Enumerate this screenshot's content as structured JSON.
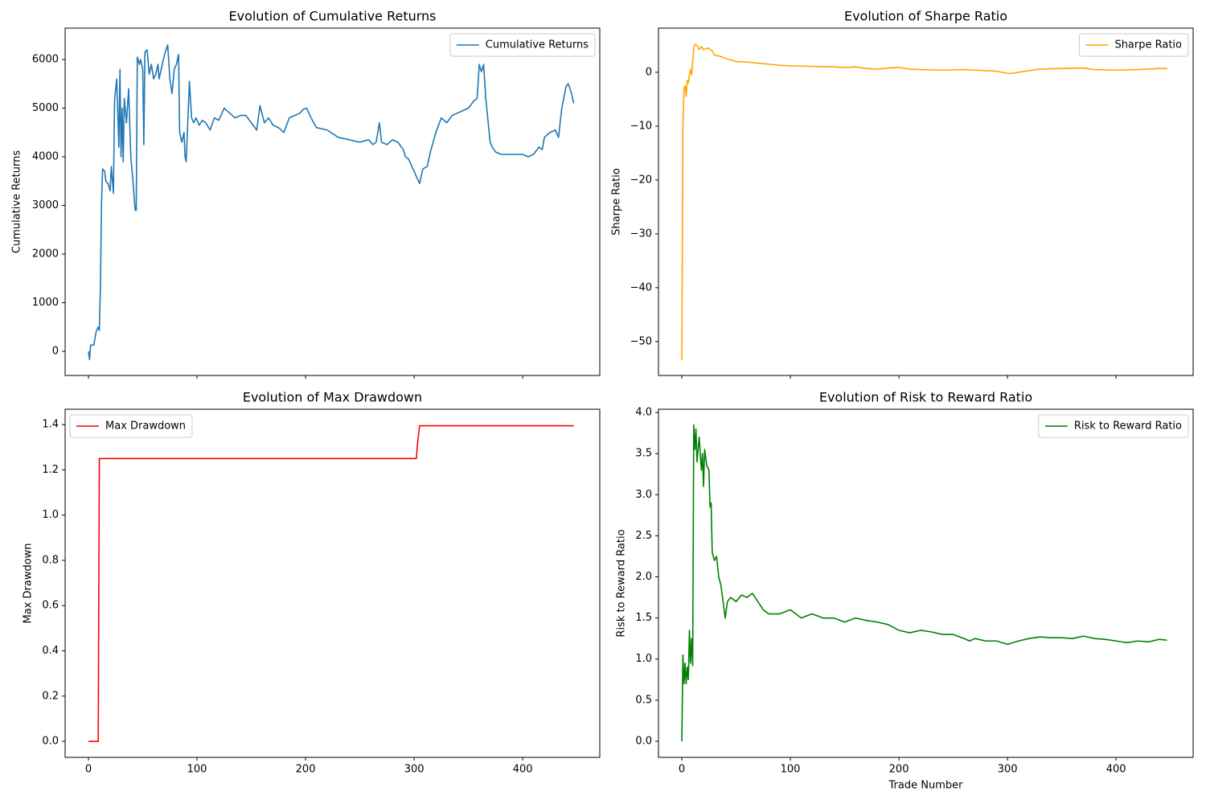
{
  "chart_data": [
    {
      "type": "line",
      "title": "Evolution of Cumulative Returns",
      "ylabel": "Cumulative Returns",
      "legend": "upper right",
      "xtick_labels": false,
      "x": [
        0,
        1,
        2,
        5,
        7,
        9,
        10,
        11,
        12,
        13,
        15,
        16,
        18,
        20,
        21,
        23,
        24,
        26,
        28,
        29,
        30,
        31,
        32,
        33,
        35,
        37,
        39,
        41,
        43,
        44,
        45,
        47,
        48,
        50,
        51,
        52,
        54,
        56,
        58,
        60,
        62,
        64,
        65,
        68,
        70,
        73,
        75,
        77,
        79,
        81,
        83,
        84,
        86,
        88,
        89,
        90,
        93,
        95,
        97,
        99,
        102,
        105,
        108,
        112,
        116,
        120,
        125,
        130,
        135,
        140,
        145,
        150,
        155,
        158,
        162,
        166,
        170,
        175,
        180,
        185,
        190,
        195,
        198,
        201,
        205,
        210,
        220,
        230,
        240,
        250,
        258,
        262,
        265,
        268,
        270,
        275,
        280,
        285,
        290,
        292,
        295,
        300,
        305,
        308,
        312,
        315,
        320,
        325,
        330,
        335,
        340,
        345,
        350,
        355,
        358,
        360,
        362,
        364,
        366,
        370,
        372,
        375,
        380,
        390,
        400,
        405,
        410,
        415,
        418,
        420,
        425,
        430,
        433,
        436,
        440,
        442,
        445,
        447
      ],
      "series": [
        {
          "name": "Cumulative Returns",
          "color": "#1f77b4",
          "values": [
            0,
            -170,
            130,
            130,
            400,
            500,
            430,
            1300,
            3000,
            3750,
            3700,
            3500,
            3450,
            3300,
            3800,
            3250,
            5150,
            5600,
            4200,
            5800,
            4000,
            5000,
            3900,
            5200,
            4700,
            5400,
            4000,
            3500,
            2900,
            2900,
            6050,
            5900,
            6000,
            5800,
            4250,
            6150,
            6200,
            5700,
            5900,
            5600,
            5700,
            5900,
            5600,
            5900,
            6100,
            6300,
            5600,
            5300,
            5800,
            5900,
            6100,
            4500,
            4300,
            4500,
            4000,
            3900,
            5550,
            4800,
            4700,
            4800,
            4650,
            4750,
            4700,
            4550,
            4800,
            4750,
            5000,
            4900,
            4800,
            4850,
            4850,
            4700,
            4550,
            5050,
            4700,
            4800,
            4650,
            4600,
            4500,
            4800,
            4850,
            4900,
            4980,
            5000,
            4800,
            4600,
            4550,
            4400,
            4350,
            4300,
            4350,
            4250,
            4300,
            4700,
            4300,
            4250,
            4350,
            4300,
            4150,
            4000,
            3950,
            3700,
            3450,
            3750,
            3800,
            4100,
            4500,
            4800,
            4700,
            4850,
            4900,
            4950,
            5000,
            5150,
            5200,
            5900,
            5750,
            5900,
            5200,
            4300,
            4200,
            4100,
            4050,
            4050,
            4050,
            4000,
            4050,
            4200,
            4150,
            4400,
            4500,
            4550,
            4400,
            5000,
            5450,
            5500,
            5300,
            5100
          ]
        }
      ],
      "xlim": [
        -21.5,
        471
      ],
      "ylim": [
        -496,
        6645
      ],
      "xticks": [
        0,
        100,
        200,
        300,
        400
      ],
      "yticks": [
        0,
        1000,
        2000,
        3000,
        4000,
        5000,
        6000
      ]
    },
    {
      "type": "line",
      "title": "Evolution of Sharpe Ratio",
      "ylabel": "Sharpe Ratio",
      "legend": "upper right",
      "xtick_labels": false,
      "x": [
        0,
        1,
        2,
        3,
        4,
        5,
        6,
        7,
        8,
        9,
        10,
        11,
        12,
        14,
        16,
        18,
        20,
        24,
        28,
        30,
        35,
        40,
        45,
        50,
        60,
        70,
        80,
        90,
        100,
        120,
        140,
        150,
        160,
        170,
        180,
        190,
        200,
        210,
        220,
        240,
        260,
        270,
        290,
        300,
        305,
        310,
        320,
        330,
        350,
        370,
        380,
        400,
        420,
        440,
        447
      ],
      "series": [
        {
          "name": "Sharpe Ratio",
          "color": "#ffa500",
          "values": [
            -53.5,
            -10,
            -3,
            -2.5,
            -4.5,
            -1.5,
            -2,
            -0.5,
            0.5,
            -0.5,
            2,
            4.5,
            5.2,
            5,
            4.2,
            4.8,
            4.2,
            4.5,
            4,
            3.2,
            3,
            2.6,
            2.3,
            2,
            1.9,
            1.7,
            1.5,
            1.3,
            1.2,
            1.1,
            1.0,
            0.9,
            1.0,
            0.7,
            0.6,
            0.8,
            0.9,
            0.6,
            0.5,
            0.4,
            0.5,
            0.4,
            0.2,
            -0.2,
            -0.2,
            0,
            0.3,
            0.6,
            0.7,
            0.8,
            0.5,
            0.4,
            0.5,
            0.7,
            0.7
          ]
        }
      ],
      "xlim": [
        -21.5,
        471
      ],
      "ylim": [
        -56.3,
        8.2
      ],
      "xticks": [
        0,
        100,
        200,
        300,
        400
      ],
      "yticks": [
        {
          "value": -50,
          "label": "−50"
        },
        {
          "value": -40,
          "label": "−40"
        },
        {
          "value": -30,
          "label": "−30"
        },
        {
          "value": -20,
          "label": "−20"
        },
        {
          "value": -10,
          "label": "−10"
        },
        0
      ]
    },
    {
      "type": "line",
      "title": "Evolution of Max Drawdown",
      "ylabel": "Max Drawdown",
      "legend": "upper left",
      "xtick_labels": true,
      "x": [
        0,
        9,
        10,
        302,
        303,
        305,
        447
      ],
      "series": [
        {
          "name": "Max Drawdown",
          "color": "#ff0000",
          "values": [
            0,
            0,
            1.25,
            1.25,
            1.31,
            1.395,
            1.395
          ]
        }
      ],
      "xlim": [
        -21.5,
        471
      ],
      "ylim": [
        -0.071,
        1.468
      ],
      "xticks": [
        0,
        100,
        200,
        300,
        400
      ],
      "yticks": [
        {
          "value": 0,
          "label": "0.0"
        },
        0.2,
        0.4,
        0.6,
        0.8,
        {
          "value": 1,
          "label": "1.0"
        },
        1.2,
        1.4
      ]
    },
    {
      "type": "line",
      "title": "Evolution of Risk to Reward Ratio",
      "ylabel": "Risk to Reward Ratio",
      "xlabel": "Trade Number",
      "legend": "upper right",
      "xtick_labels": true,
      "x": [
        0,
        1,
        2,
        3,
        4,
        5,
        6,
        7,
        8,
        9,
        10,
        11,
        12,
        13,
        14,
        16,
        18,
        19,
        20,
        21,
        23,
        25,
        26,
        27,
        28,
        30,
        32,
        34,
        36,
        38,
        40,
        42,
        45,
        50,
        55,
        60,
        65,
        70,
        75,
        80,
        90,
        100,
        110,
        120,
        130,
        140,
        150,
        160,
        170,
        180,
        190,
        200,
        210,
        220,
        230,
        240,
        250,
        260,
        265,
        270,
        280,
        290,
        300,
        310,
        320,
        330,
        340,
        350,
        360,
        370,
        380,
        390,
        400,
        410,
        420,
        430,
        440,
        447
      ],
      "series": [
        {
          "name": "Risk to Reward Ratio",
          "color": "#008000",
          "values": [
            0,
            1.05,
            0.7,
            0.95,
            0.7,
            0.9,
            0.75,
            1.35,
            0.95,
            1.25,
            0.92,
            3.85,
            3.55,
            3.8,
            3.4,
            3.7,
            3.3,
            3.5,
            3.1,
            3.55,
            3.35,
            3.3,
            2.85,
            2.9,
            2.3,
            2.2,
            2.25,
            2.0,
            1.9,
            1.7,
            1.5,
            1.7,
            1.75,
            1.7,
            1.78,
            1.75,
            1.8,
            1.7,
            1.6,
            1.55,
            1.55,
            1.6,
            1.5,
            1.55,
            1.5,
            1.5,
            1.45,
            1.5,
            1.47,
            1.45,
            1.42,
            1.35,
            1.32,
            1.35,
            1.33,
            1.3,
            1.3,
            1.25,
            1.22,
            1.25,
            1.22,
            1.22,
            1.18,
            1.22,
            1.25,
            1.27,
            1.26,
            1.26,
            1.25,
            1.28,
            1.25,
            1.24,
            1.22,
            1.2,
            1.22,
            1.21,
            1.24,
            1.23
          ]
        }
      ],
      "xlim": [
        -21.5,
        471
      ],
      "ylim": [
        -0.196,
        4.04
      ],
      "xticks": [
        0,
        100,
        200,
        300,
        400
      ],
      "yticks": [
        {
          "value": 0,
          "label": "0.0"
        },
        0.5,
        {
          "value": 1,
          "label": "1.0"
        },
        1.5,
        {
          "value": 2,
          "label": "2.0"
        },
        2.5,
        {
          "value": 3,
          "label": "3.0"
        },
        3.5,
        {
          "value": 4,
          "label": "4.0"
        }
      ]
    }
  ]
}
